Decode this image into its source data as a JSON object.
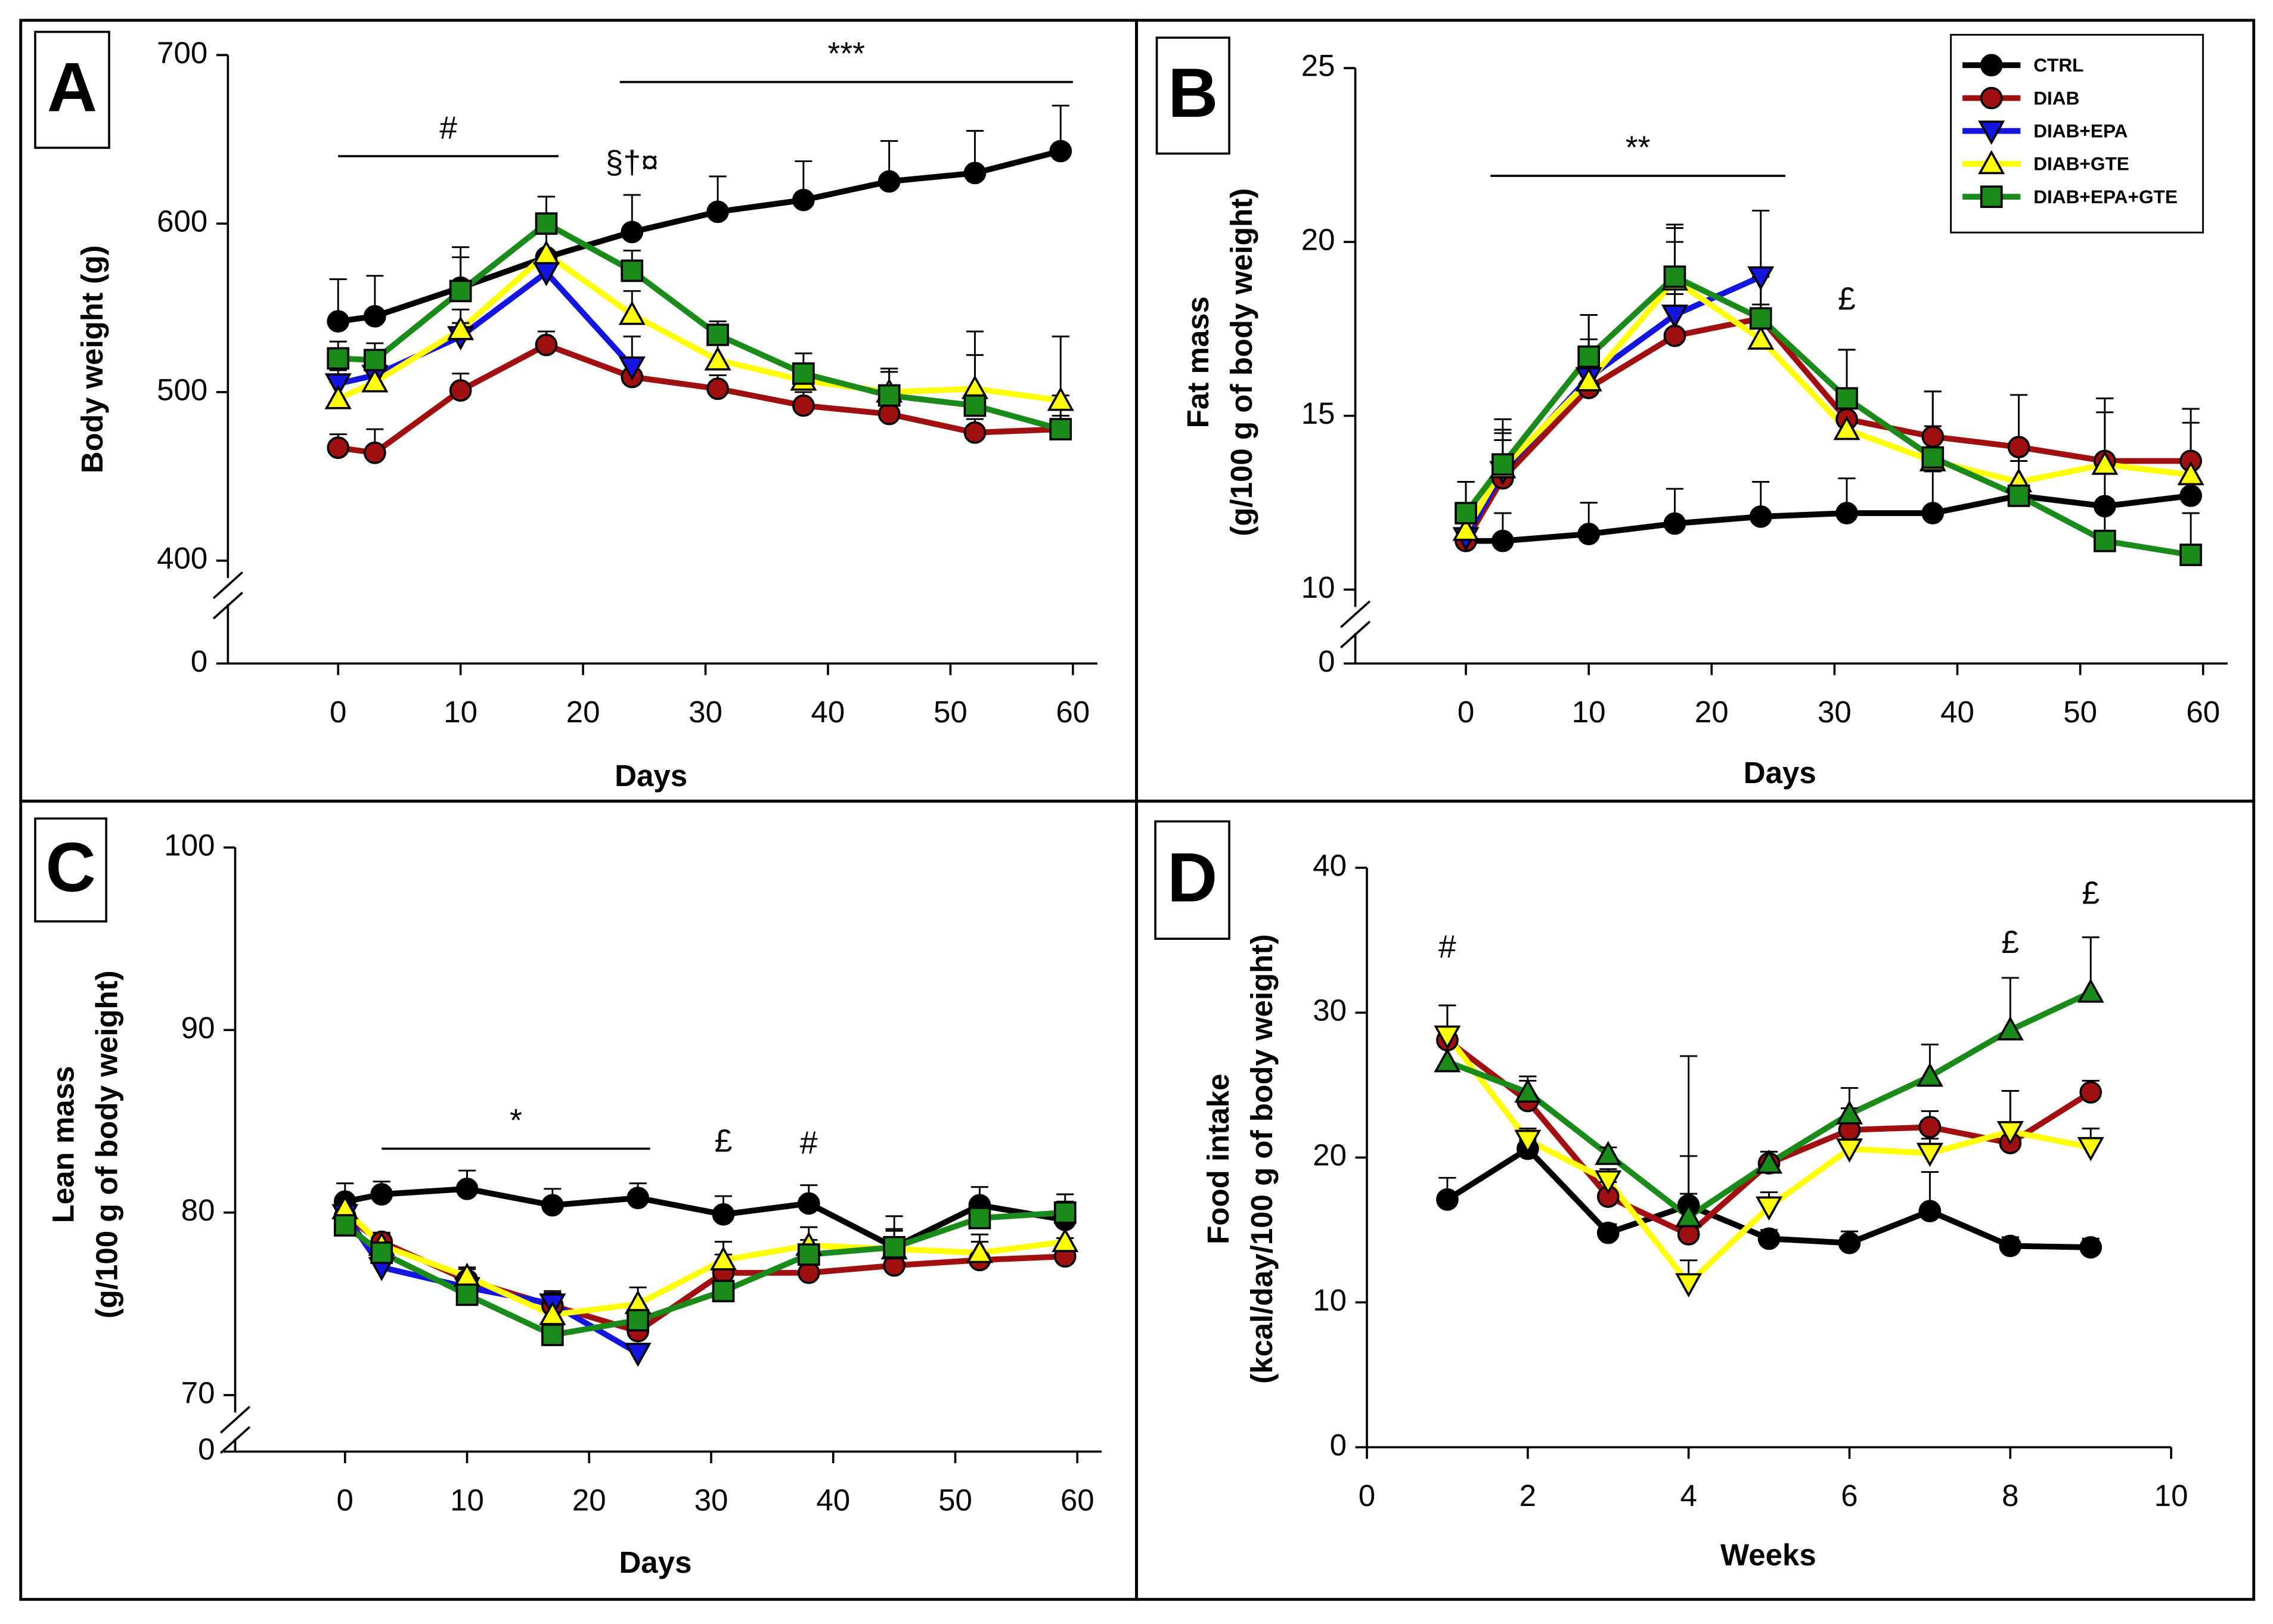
{
  "chart_data": [
    {
      "type": "line",
      "title": "A",
      "xlabel": "Days",
      "ylabel": [
        "Body weight (g)"
      ],
      "x": [
        0,
        3,
        10,
        17,
        24,
        31,
        38,
        45,
        52,
        59
      ],
      "xlim": [
        -9,
        62
      ],
      "xticks": [
        0,
        10,
        20,
        30,
        40,
        50,
        60
      ],
      "ylim": [
        400,
        700
      ],
      "yticks": [
        400,
        500,
        600,
        700
      ],
      "y_below_break": 0,
      "series": [
        {
          "color": "#000000",
          "marker": "circle",
          "values": [
            542,
            545,
            562,
            580,
            595,
            607,
            614,
            625,
            630,
            643
          ],
          "errors": [
            25,
            24,
            24,
            20,
            22,
            21,
            23,
            24,
            25,
            27
          ]
        },
        {
          "color": "#a01010",
          "marker": "circle",
          "values": [
            467,
            464,
            501,
            528,
            509,
            502,
            492,
            487,
            476,
            478
          ],
          "errors": [
            8,
            14,
            10,
            8,
            8,
            8,
            8,
            8,
            8,
            8
          ]
        },
        {
          "color": "#1515e0",
          "marker": "triangle-down",
          "values": [
            505,
            510,
            533,
            571,
            515,
            null,
            null,
            null,
            null,
            null
          ],
          "errors": [
            8,
            10,
            8,
            8,
            18,
            null,
            null,
            null,
            null,
            null
          ]
        },
        {
          "color": "#ffff00",
          "marker": "triangle-up",
          "values": [
            496,
            506,
            537,
            582,
            546,
            519,
            507,
            500,
            502,
            495
          ],
          "errors": [
            10,
            10,
            12,
            12,
            14,
            10,
            10,
            14,
            20,
            38
          ]
        },
        {
          "color": "#1a8a1a",
          "marker": "square",
          "values": [
            520,
            519,
            560,
            600,
            572,
            534,
            511,
            498,
            492,
            478
          ],
          "errors": [
            10,
            10,
            20,
            16,
            12,
            8,
            12,
            14,
            44,
            20
          ]
        }
      ],
      "annotations": [
        {
          "text": "#",
          "x": [
            0,
            18
          ],
          "y": 640
        },
        {
          "text": "***",
          "x": [
            23,
            60
          ],
          "y": 684
        },
        {
          "text": "§†¤",
          "x": [
            24
          ],
          "y": 635
        }
      ]
    },
    {
      "type": "line",
      "title": "B",
      "xlabel": "Days",
      "ylabel": [
        "Fat mass",
        "(g/100 g of body weight)"
      ],
      "x": [
        0,
        3,
        10,
        17,
        24,
        31,
        38,
        45,
        52,
        59
      ],
      "xlim": [
        -9,
        62
      ],
      "xticks": [
        0,
        10,
        20,
        30,
        40,
        50,
        60
      ],
      "ylim": [
        10,
        25
      ],
      "yticks": [
        10,
        15,
        20,
        25
      ],
      "y_below_break": 0,
      "legend": "upper right",
      "series": [
        {
          "name": "CTRL",
          "color": "#000000",
          "marker": "circle",
          "values": [
            11.4,
            11.4,
            11.6,
            11.9,
            12.1,
            12.2,
            12.2,
            12.7,
            12.4,
            12.7
          ],
          "errors": [
            1.7,
            0.8,
            0.9,
            1.0,
            1.0,
            1.0,
            1.2,
            1.0,
            1.1,
            0.5
          ]
        },
        {
          "name": "DIAB",
          "color": "#a01010",
          "marker": "circle",
          "values": [
            11.4,
            13.2,
            15.8,
            17.3,
            17.8,
            14.9,
            14.4,
            14.1,
            13.7,
            13.7
          ],
          "errors": [
            0.5,
            1.1,
            1.0,
            1.2,
            1.2,
            2.0,
            1.3,
            1.5,
            1.8,
            1.5
          ]
        },
        {
          "name": "DIAB+EPA",
          "color": "#1515e0",
          "marker": "triangle-down",
          "values": [
            11.5,
            13.4,
            16.1,
            17.9,
            19.0,
            null,
            null,
            null,
            null,
            null
          ],
          "errors": [
            0.4,
            1.2,
            1.8,
            2.1,
            1.9,
            null,
            null,
            null,
            null,
            null
          ]
        },
        {
          "name": "DIAB+GTE",
          "color": "#ffff00",
          "marker": "triangle-up",
          "values": [
            11.7,
            13.5,
            16.0,
            18.9,
            17.2,
            14.6,
            13.7,
            13.1,
            13.6,
            13.3
          ],
          "errors": [
            0.5,
            1.0,
            1.2,
            1.5,
            1.0,
            0.8,
            1.0,
            1.0,
            1.5,
            1.5
          ]
        },
        {
          "name": "DIAB+EPA+GTE",
          "color": "#1a8a1a",
          "marker": "square",
          "values": [
            12.2,
            13.6,
            16.7,
            19.0,
            17.8,
            15.5,
            13.8,
            12.7,
            11.4,
            11.0
          ],
          "errors": [
            0.9,
            1.3,
            1.2,
            1.5,
            1.2,
            1.4,
            1.9,
            1.5,
            1.2,
            1.2
          ]
        }
      ],
      "annotations": [
        {
          "text": "**",
          "x": [
            2,
            26
          ],
          "y": 21.9
        },
        {
          "text": "£",
          "x": [
            31
          ],
          "y": 18.3
        }
      ]
    },
    {
      "type": "line",
      "title": "C",
      "xlabel": "Days",
      "ylabel": [
        "Lean mass",
        "(g/100 g of body weight)"
      ],
      "x": [
        0,
        3,
        10,
        17,
        24,
        31,
        38,
        45,
        52,
        59
      ],
      "xlim": [
        -9,
        62
      ],
      "xticks": [
        0,
        10,
        20,
        30,
        40,
        50,
        60
      ],
      "ylim": [
        70,
        100
      ],
      "yticks": [
        70,
        80,
        90,
        100
      ],
      "y_below_break": 0,
      "series": [
        {
          "color": "#000000",
          "marker": "circle",
          "values": [
            80.6,
            81.0,
            81.3,
            80.4,
            80.8,
            79.9,
            80.5,
            78.1,
            80.4,
            79.6
          ],
          "errors": [
            1.0,
            0.7,
            1.0,
            0.9,
            0.8,
            1.0,
            1.0,
            1.7,
            1.0,
            1.0
          ]
        },
        {
          "color": "#a01010",
          "marker": "circle",
          "values": [
            79.8,
            78.4,
            76.3,
            74.9,
            73.5,
            76.7,
            76.7,
            77.1,
            77.4,
            77.6
          ],
          "errors": [
            0.6,
            0.5,
            0.6,
            0.8,
            0.7,
            1.0,
            1.0,
            1.0,
            1.0,
            1.0
          ]
        },
        {
          "color": "#1515e0",
          "marker": "triangle-down",
          "values": [
            79.9,
            77.0,
            75.9,
            75.0,
            72.3,
            null,
            null,
            null,
            null,
            null
          ],
          "errors": [
            0.5,
            0.6,
            0.6,
            0.6,
            0.5,
            null,
            null,
            null,
            null,
            null
          ]
        },
        {
          "color": "#ffff00",
          "marker": "triangle-up",
          "values": [
            80.2,
            78.2,
            76.5,
            74.4,
            75.0,
            77.4,
            78.2,
            78.0,
            77.8,
            78.4
          ],
          "errors": [
            0.5,
            0.6,
            0.5,
            0.8,
            0.9,
            1.0,
            1.0,
            1.0,
            1.0,
            1.0
          ]
        },
        {
          "color": "#1a8a1a",
          "marker": "square",
          "values": [
            79.3,
            77.8,
            75.5,
            73.3,
            74.1,
            75.7,
            77.7,
            78.1,
            79.7,
            80.0
          ],
          "errors": [
            0.5,
            0.6,
            0.6,
            0.8,
            0.8,
            0.8,
            0.8,
            1.0,
            1.0,
            1.0
          ]
        }
      ],
      "annotations": [
        {
          "text": "*",
          "x": [
            3,
            25
          ],
          "y": 83.5
        },
        {
          "text": "£",
          "x": [
            31
          ],
          "y": 83.8
        },
        {
          "text": "#",
          "x": [
            38
          ],
          "y": 83.7
        }
      ]
    },
    {
      "type": "line",
      "title": "D",
      "xlabel": "Weeks",
      "ylabel": [
        "Food intake",
        "(kcal/day/100 g of body weight)"
      ],
      "x": [
        1,
        2,
        3,
        4,
        5,
        6,
        7,
        8,
        9
      ],
      "xlim": [
        0,
        10
      ],
      "xticks": [
        0,
        2,
        4,
        6,
        8,
        10
      ],
      "ylim": [
        0,
        40
      ],
      "yticks": [
        0,
        10,
        20,
        30,
        40
      ],
      "series": [
        {
          "color": "#000000",
          "marker": "circle",
          "values": [
            17.1,
            20.6,
            14.8,
            16.7,
            14.4,
            14.1,
            16.3,
            13.9,
            13.8
          ],
          "errors": [
            1.5,
            0.6,
            0.6,
            10.3,
            0.6,
            0.8,
            2.7,
            0.6,
            0.6
          ]
        },
        {
          "color": "#a01010",
          "marker": "circle",
          "values": [
            28.1,
            23.9,
            17.3,
            14.7,
            19.6,
            21.9,
            22.1,
            21.0,
            24.5
          ],
          "errors": [
            2.4,
            1.4,
            1.0,
            5.4,
            0.8,
            1.5,
            1.1,
            3.6,
            0.8
          ]
        },
        {
          "color": "#ffff00",
          "marker": "triangle-down",
          "values": [
            28.4,
            21.2,
            18.4,
            11.3,
            16.6,
            20.6,
            20.3,
            21.8,
            20.7
          ],
          "errors": [
            2.1,
            0.8,
            0.8,
            1.6,
            1.0,
            1.0,
            1.0,
            2.8,
            1.3
          ]
        },
        {
          "color": "#1a8a1a",
          "marker": "triangle-up",
          "values": [
            26.6,
            24.5,
            20.2,
            15.9,
            19.6,
            23.0,
            25.6,
            28.8,
            31.4
          ],
          "errors": [
            1.8,
            1.1,
            0.5,
            1.6,
            0.8,
            1.8,
            2.2,
            3.6,
            3.8
          ]
        }
      ],
      "annotations": [
        {
          "text": "#",
          "x": [
            1
          ],
          "y": 34.4
        },
        {
          "text": "£",
          "x": [
            8
          ],
          "y": 34.7
        },
        {
          "text": "£",
          "x": [
            9
          ],
          "y": 38.1
        }
      ]
    }
  ]
}
